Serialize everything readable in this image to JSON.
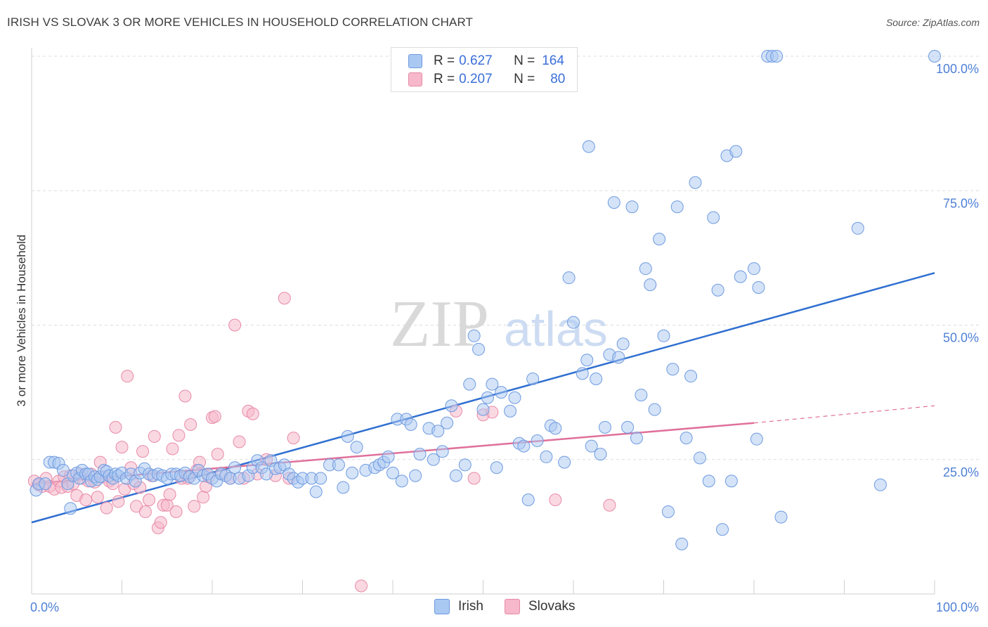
{
  "title": "IRISH VS SLOVAK 3 OR MORE VEHICLES IN HOUSEHOLD CORRELATION CHART",
  "source": "Source: ZipAtlas.com",
  "watermark": {
    "zip": "ZIP",
    "atlas": "atlas"
  },
  "legend": {
    "irish": {
      "r_label": "R =",
      "r_value": "0.627",
      "n_label": "N =",
      "n_value": "164"
    },
    "slovaks": {
      "r_label": "R =",
      "r_value": "0.207",
      "n_label": "N =",
      "n_value": "80"
    }
  },
  "bottom_legend": {
    "irish": "Irish",
    "slovaks": "Slovaks"
  },
  "colors": {
    "irish_fill": "#a9c8f2",
    "irish_stroke": "#6f9be0",
    "irish_line": "#2f6fd0",
    "slovak_fill": "#f6b8ca",
    "slovak_stroke": "#e88aa8",
    "slovak_line": "#e0709a",
    "axis_text": "#4f80d6",
    "grid": "#dddddd"
  },
  "chart_data": {
    "type": "scatter",
    "title": "IRISH VS SLOVAK 3 OR MORE VEHICLES IN HOUSEHOLD CORRELATION CHART",
    "xlabel": "",
    "ylabel": "3 or more Vehicles in Household",
    "xlim": [
      0,
      100
    ],
    "ylim": [
      0,
      102
    ],
    "x_tick_labels": [
      "0.0%",
      "100.0%"
    ],
    "y_ticks": [
      25,
      50,
      75,
      100
    ],
    "y_tick_labels": [
      "25.0%",
      "50.0%",
      "75.0%",
      "100.0%"
    ],
    "grid": true,
    "series": [
      {
        "name": "Irish",
        "r": 0.627,
        "n": 164,
        "trend": {
          "x": [
            0,
            100
          ],
          "y": [
            13.3,
            59.7
          ]
        },
        "points": [
          [
            0.5,
            19.3
          ],
          [
            0.8,
            20.5
          ],
          [
            1.5,
            20.5
          ],
          [
            2,
            24.5
          ],
          [
            2.5,
            24.5
          ],
          [
            3,
            24.3
          ],
          [
            3.5,
            23
          ],
          [
            4,
            20.5
          ],
          [
            4.3,
            15.9
          ],
          [
            4.6,
            22
          ],
          [
            5,
            22.5
          ],
          [
            5.3,
            21.5
          ],
          [
            5.6,
            23
          ],
          [
            6,
            22.3
          ],
          [
            6.3,
            22.3
          ],
          [
            6.6,
            21
          ],
          [
            7,
            21.8
          ],
          [
            7.3,
            21.3
          ],
          [
            7.6,
            21.8
          ],
          [
            8,
            23
          ],
          [
            8.3,
            22.8
          ],
          [
            8.6,
            22
          ],
          [
            9,
            21.5
          ],
          [
            9.3,
            22.3
          ],
          [
            9.6,
            22
          ],
          [
            10,
            22.5
          ],
          [
            10.5,
            21.5
          ],
          [
            11,
            22.3
          ],
          [
            11.5,
            21
          ],
          [
            12,
            22.5
          ],
          [
            12.5,
            23.3
          ],
          [
            13,
            22.3
          ],
          [
            13.5,
            22
          ],
          [
            14,
            22.3
          ],
          [
            14.5,
            22
          ],
          [
            15,
            21.5
          ],
          [
            15.5,
            22.3
          ],
          [
            16,
            22.3
          ],
          [
            16.5,
            22
          ],
          [
            17,
            22.5
          ],
          [
            17.5,
            21.8
          ],
          [
            18,
            21.5
          ],
          [
            18.5,
            23
          ],
          [
            19,
            22
          ],
          [
            19.5,
            22.3
          ],
          [
            20,
            21.5
          ],
          [
            20.5,
            21
          ],
          [
            21,
            22.3
          ],
          [
            21.5,
            22
          ],
          [
            22,
            21.5
          ],
          [
            22.5,
            23.5
          ],
          [
            23,
            21.5
          ],
          [
            24,
            22
          ],
          [
            24.5,
            23.5
          ],
          [
            25,
            24.8
          ],
          [
            25.5,
            23.5
          ],
          [
            26,
            22.3
          ],
          [
            26.5,
            24.8
          ],
          [
            27,
            23.3
          ],
          [
            27.5,
            23.5
          ],
          [
            28,
            24
          ],
          [
            28.5,
            22.3
          ],
          [
            29,
            21.5
          ],
          [
            29.5,
            20.8
          ],
          [
            30,
            21.5
          ],
          [
            31,
            21.5
          ],
          [
            31.5,
            19
          ],
          [
            32,
            21.5
          ],
          [
            33,
            24
          ],
          [
            34,
            24
          ],
          [
            34.5,
            19.8
          ],
          [
            35,
            29.3
          ],
          [
            35.5,
            22.5
          ],
          [
            36,
            27.3
          ],
          [
            37,
            23
          ],
          [
            38,
            23.5
          ],
          [
            38.5,
            24
          ],
          [
            39,
            24.5
          ],
          [
            39.5,
            25.5
          ],
          [
            40,
            22.5
          ],
          [
            40.5,
            32.5
          ],
          [
            41,
            21
          ],
          [
            41.5,
            32.5
          ],
          [
            42,
            31.5
          ],
          [
            42.5,
            22
          ],
          [
            43,
            26
          ],
          [
            44,
            30.8
          ],
          [
            44.5,
            25
          ],
          [
            45,
            30.3
          ],
          [
            45.5,
            26.5
          ],
          [
            46,
            31.8
          ],
          [
            46.5,
            35
          ],
          [
            47,
            22
          ],
          [
            48,
            24
          ],
          [
            48.5,
            39
          ],
          [
            49,
            48
          ],
          [
            49.5,
            45.5
          ],
          [
            50,
            34.3
          ],
          [
            50.5,
            36.5
          ],
          [
            51,
            39
          ],
          [
            51.5,
            23.5
          ],
          [
            52,
            37.5
          ],
          [
            53,
            34
          ],
          [
            53.5,
            36.5
          ],
          [
            54,
            28
          ],
          [
            54.5,
            27.5
          ],
          [
            55,
            17.5
          ],
          [
            55.5,
            40
          ],
          [
            56,
            28.5
          ],
          [
            57,
            25.5
          ],
          [
            57.5,
            31.3
          ],
          [
            58,
            30.8
          ],
          [
            59,
            24.5
          ],
          [
            59.5,
            58.8
          ],
          [
            60,
            50.5
          ],
          [
            61,
            41
          ],
          [
            61.5,
            43.5
          ],
          [
            61.7,
            83.2
          ],
          [
            62,
            27.5
          ],
          [
            62.5,
            40
          ],
          [
            63,
            26
          ],
          [
            63.5,
            31
          ],
          [
            64,
            44.5
          ],
          [
            64.5,
            72.8
          ],
          [
            65,
            44
          ],
          [
            65.5,
            46.5
          ],
          [
            66,
            31
          ],
          [
            66.5,
            72
          ],
          [
            67,
            29
          ],
          [
            67.5,
            37
          ],
          [
            68,
            60.5
          ],
          [
            68.5,
            57.5
          ],
          [
            69,
            34.3
          ],
          [
            69.5,
            66
          ],
          [
            70,
            48
          ],
          [
            70.5,
            15.3
          ],
          [
            71,
            41.8
          ],
          [
            71.5,
            72
          ],
          [
            72,
            9.3
          ],
          [
            72.5,
            29
          ],
          [
            73,
            40.5
          ],
          [
            73.5,
            76.5
          ],
          [
            74,
            25.3
          ],
          [
            75,
            21
          ],
          [
            75.5,
            70
          ],
          [
            76,
            56.5
          ],
          [
            76.5,
            12
          ],
          [
            77,
            81.5
          ],
          [
            77.5,
            21
          ],
          [
            78,
            82.3
          ],
          [
            78.5,
            59
          ],
          [
            80,
            60.5
          ],
          [
            80.5,
            57
          ],
          [
            80.3,
            28.8
          ],
          [
            81.5,
            100
          ],
          [
            82,
            100
          ],
          [
            82.5,
            100
          ],
          [
            83,
            14.3
          ],
          [
            91.5,
            68
          ],
          [
            94,
            20.3
          ],
          [
            100,
            100
          ]
        ]
      },
      {
        "name": "Slovaks",
        "r": 0.207,
        "n": 80,
        "trend": {
          "x": [
            0,
            80
          ],
          "y": [
            20.5,
            31.8
          ]
        },
        "trend_dashed": {
          "x": [
            80,
            100
          ],
          "y": [
            31.8,
            35
          ]
        },
        "points": [
          [
            0.3,
            21
          ],
          [
            0.8,
            20.3
          ],
          [
            1.2,
            20
          ],
          [
            1.6,
            21.5
          ],
          [
            2,
            20
          ],
          [
            2.5,
            19.5
          ],
          [
            3,
            21
          ],
          [
            3.3,
            19.8
          ],
          [
            3.6,
            21.8
          ],
          [
            4,
            20
          ],
          [
            4.3,
            22
          ],
          [
            4.6,
            20.5
          ],
          [
            5,
            18.3
          ],
          [
            5.3,
            22.3
          ],
          [
            5.6,
            21.5
          ],
          [
            6,
            17.5
          ],
          [
            6.3,
            21
          ],
          [
            6.6,
            22.3
          ],
          [
            7,
            20.8
          ],
          [
            7.3,
            18
          ],
          [
            7.6,
            24.5
          ],
          [
            8,
            21.8
          ],
          [
            8.3,
            16
          ],
          [
            8.6,
            21
          ],
          [
            9,
            20.5
          ],
          [
            9.3,
            31
          ],
          [
            9.6,
            17.2
          ],
          [
            10,
            27.3
          ],
          [
            10.3,
            19.5
          ],
          [
            10.6,
            40.5
          ],
          [
            11,
            23.5
          ],
          [
            11.3,
            20.5
          ],
          [
            11.6,
            16.3
          ],
          [
            12,
            19.8
          ],
          [
            12.3,
            26.5
          ],
          [
            12.6,
            15.3
          ],
          [
            13,
            17.5
          ],
          [
            13.3,
            22
          ],
          [
            13.6,
            29.3
          ],
          [
            14,
            12.3
          ],
          [
            14.3,
            13.3
          ],
          [
            14.6,
            16.5
          ],
          [
            15,
            16.5
          ],
          [
            15.3,
            18.5
          ],
          [
            15.6,
            27
          ],
          [
            16,
            15.3
          ],
          [
            16.3,
            29.5
          ],
          [
            16.6,
            21.5
          ],
          [
            17,
            36.8
          ],
          [
            17.3,
            21.5
          ],
          [
            17.6,
            31.5
          ],
          [
            18,
            16.3
          ],
          [
            18.3,
            23
          ],
          [
            18.6,
            24.5
          ],
          [
            19,
            18
          ],
          [
            19.3,
            20
          ],
          [
            19.6,
            21.8
          ],
          [
            20,
            32.8
          ],
          [
            20.3,
            33
          ],
          [
            20.6,
            26
          ],
          [
            21,
            22.5
          ],
          [
            22,
            21.5
          ],
          [
            22.5,
            50
          ],
          [
            23,
            28.3
          ],
          [
            23.5,
            21.5
          ],
          [
            24,
            34
          ],
          [
            24.5,
            33.5
          ],
          [
            25,
            22.3
          ],
          [
            26,
            25
          ],
          [
            27,
            22
          ],
          [
            28,
            55
          ],
          [
            28.5,
            21.5
          ],
          [
            29,
            29
          ],
          [
            36.5,
            1.5
          ],
          [
            47,
            34
          ],
          [
            49,
            21.5
          ],
          [
            50,
            33.3
          ],
          [
            51,
            33.8
          ],
          [
            58,
            17.5
          ],
          [
            64,
            16.5
          ]
        ]
      }
    ]
  }
}
